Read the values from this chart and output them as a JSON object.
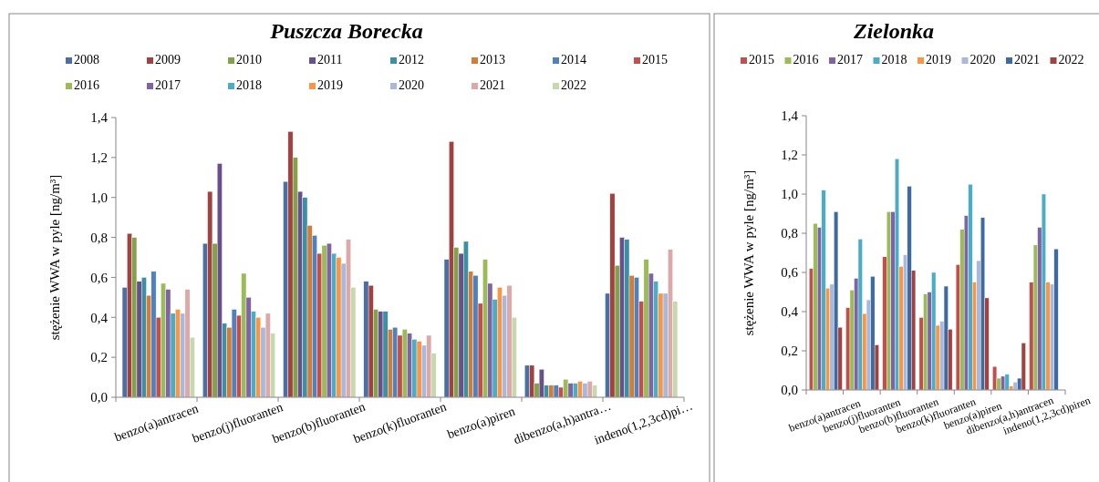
{
  "chart_data": [
    {
      "type": "bar",
      "title": "Puszcza Borecka",
      "ylabel": "stężenie WWA w pyle [ng/m³]",
      "categories": [
        "benzo(a)antracen",
        "benzo(j)fluoranten",
        "benzo(b)fluoranten",
        "benzo(k)fluoranten",
        "benzo(a)piren",
        "dibenzo(a,h)antra…",
        "indeno(1,2,3cd)pi…"
      ],
      "ylim": [
        0,
        1.4
      ],
      "yticks": [
        {
          "value": 0,
          "label": "0,0"
        },
        {
          "value": 0.2,
          "label": "0,2"
        },
        {
          "value": 0.4,
          "label": "0,4"
        },
        {
          "value": 0.6,
          "label": "0,6"
        },
        {
          "value": 0.8,
          "label": "0,8"
        },
        {
          "value": 1,
          "label": "1,0"
        },
        {
          "value": 1.2,
          "label": "1,2"
        },
        {
          "value": 1.4,
          "label": "1,4"
        }
      ],
      "legend": "top",
      "grid": false,
      "series": [
        {
          "name": "2008",
          "color": "#4a6fa5",
          "values": [
            0.55,
            0.77,
            1.08,
            0.58,
            0.69,
            0.16,
            0.52
          ]
        },
        {
          "name": "2009",
          "color": "#a04240",
          "values": [
            0.82,
            1.03,
            1.33,
            0.56,
            1.28,
            0.16,
            1.02
          ]
        },
        {
          "name": "2010",
          "color": "#84a04a",
          "values": [
            0.8,
            0.77,
            1.2,
            0.44,
            0.75,
            0.07,
            0.66
          ]
        },
        {
          "name": "2011",
          "color": "#6a5088",
          "values": [
            0.58,
            1.17,
            1.03,
            0.43,
            0.72,
            0.14,
            0.8
          ]
        },
        {
          "name": "2012",
          "color": "#3d8fa6",
          "values": [
            0.6,
            0.37,
            1.0,
            0.43,
            0.78,
            0.06,
            0.79
          ]
        },
        {
          "name": "2013",
          "color": "#d27d37",
          "values": [
            0.51,
            0.35,
            0.86,
            0.34,
            0.63,
            0.06,
            0.61
          ]
        },
        {
          "name": "2014",
          "color": "#4f81bd",
          "values": [
            0.63,
            0.44,
            0.81,
            0.35,
            0.61,
            0.06,
            0.6
          ]
        },
        {
          "name": "2015",
          "color": "#c0504d",
          "values": [
            0.4,
            0.41,
            0.72,
            0.31,
            0.47,
            0.05,
            0.48
          ]
        },
        {
          "name": "2016",
          "color": "#9bbb59",
          "values": [
            0.57,
            0.62,
            0.76,
            0.34,
            0.69,
            0.09,
            0.69
          ]
        },
        {
          "name": "2017",
          "color": "#8064a2",
          "values": [
            0.54,
            0.5,
            0.77,
            0.32,
            0.57,
            0.07,
            0.62
          ]
        },
        {
          "name": "2018",
          "color": "#4bacc6",
          "values": [
            0.42,
            0.43,
            0.72,
            0.29,
            0.49,
            0.07,
            0.58
          ]
        },
        {
          "name": "2019",
          "color": "#f79646",
          "values": [
            0.44,
            0.4,
            0.7,
            0.28,
            0.55,
            0.08,
            0.52
          ]
        },
        {
          "name": "2020",
          "color": "#a9b9d9",
          "values": [
            0.42,
            0.35,
            0.67,
            0.26,
            0.51,
            0.07,
            0.52
          ]
        },
        {
          "name": "2021",
          "color": "#dba9a9",
          "values": [
            0.54,
            0.42,
            0.79,
            0.31,
            0.56,
            0.08,
            0.74
          ]
        },
        {
          "name": "2022",
          "color": "#c8d8ae",
          "values": [
            0.3,
            0.32,
            0.55,
            0.22,
            0.4,
            0.06,
            0.48
          ]
        }
      ]
    },
    {
      "type": "bar",
      "title": "Zielonka",
      "ylabel": "stężenie WWA w pyle [ng/m³]",
      "categories": [
        "benzo(a)antracen",
        "benzo(j)fluoranten",
        "benzo(b)fluoranten",
        "benzo(k)fluoranten",
        "benzo(a)piren",
        "dibenzo(a,h)antracen",
        "indeno(1,2,3cd)piren"
      ],
      "ylim": [
        0,
        1.4
      ],
      "yticks": [
        {
          "value": 0,
          "label": "0,0"
        },
        {
          "value": 0.2,
          "label": "0,2"
        },
        {
          "value": 0.4,
          "label": "0,4"
        },
        {
          "value": 0.6,
          "label": "0,6"
        },
        {
          "value": 0.8,
          "label": "0,8"
        },
        {
          "value": 1,
          "label": "1,0"
        },
        {
          "value": 1.2,
          "label": "1,2"
        },
        {
          "value": 1.4,
          "label": "1,4"
        }
      ],
      "legend": "top",
      "grid": false,
      "series": [
        {
          "name": "2015",
          "color": "#c0504d",
          "values": [
            0.62,
            0.42,
            0.68,
            0.37,
            0.64,
            0.12,
            0.55
          ]
        },
        {
          "name": "2016",
          "color": "#9bbb59",
          "values": [
            0.85,
            0.51,
            0.91,
            0.49,
            0.82,
            0.06,
            0.74
          ]
        },
        {
          "name": "2017",
          "color": "#8064a2",
          "values": [
            0.83,
            0.57,
            0.91,
            0.5,
            0.89,
            0.07,
            0.83
          ]
        },
        {
          "name": "2018",
          "color": "#4bacc6",
          "values": [
            1.02,
            0.77,
            1.18,
            0.6,
            1.05,
            0.08,
            1.0
          ]
        },
        {
          "name": "2019",
          "color": "#f79646",
          "values": [
            0.52,
            0.39,
            0.63,
            0.33,
            0.55,
            0.02,
            0.55
          ]
        },
        {
          "name": "2020",
          "color": "#a9b9d9",
          "values": [
            0.54,
            0.46,
            0.69,
            0.35,
            0.66,
            0.04,
            0.54
          ]
        },
        {
          "name": "2021",
          "color": "#3e6aa0",
          "values": [
            0.91,
            0.58,
            1.04,
            0.53,
            0.88,
            0.06,
            0.72
          ]
        },
        {
          "name": "2022",
          "color": "#a04240",
          "values": [
            0.32,
            0.23,
            0.61,
            0.31,
            0.47,
            0.24,
            null
          ]
        }
      ]
    }
  ]
}
